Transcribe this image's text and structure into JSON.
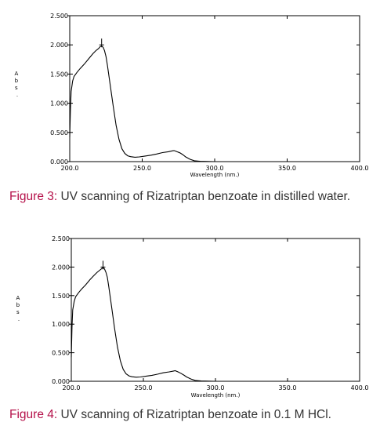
{
  "figures": [
    {
      "caption_label": "Figure 3:",
      "caption_text": " UV scanning of Rizatriptan benzoate in distilled water."
    },
    {
      "caption_label": "Figure 4:",
      "caption_text": " UV scanning of Rizatriptan benzoate in 0.1 M HCl."
    }
  ],
  "chart_data": [
    {
      "type": "line",
      "title": "",
      "xlabel": "Wavelength (nm.)",
      "ylabel": "Abs.",
      "xlim": [
        200,
        400
      ],
      "ylim": [
        0,
        2.5
      ],
      "x_ticks": [
        "200.0",
        "250.0",
        "300.0",
        "350.0",
        "400.0"
      ],
      "y_ticks": [
        "0.000",
        "0.500",
        "1.000",
        "1.500",
        "2.000",
        "2.500"
      ],
      "grid": false,
      "peak_marker": {
        "x": 222,
        "y": 2.0
      },
      "series": [
        {
          "x": [
            200,
            200.5,
            201,
            202,
            203,
            205,
            207,
            210,
            213,
            216,
            218,
            220,
            221,
            222,
            223,
            224,
            225,
            226,
            228,
            230,
            232,
            234,
            236,
            238,
            240,
            242,
            245,
            248,
            252,
            256,
            260,
            264,
            268,
            271,
            272,
            274,
            276,
            278,
            280,
            283,
            286,
            290,
            300,
            320,
            350,
            380,
            400
          ],
          "y": [
            0.42,
            0.9,
            1.2,
            1.38,
            1.46,
            1.53,
            1.59,
            1.67,
            1.76,
            1.85,
            1.9,
            1.94,
            1.97,
            1.98,
            1.96,
            1.9,
            1.8,
            1.65,
            1.3,
            0.95,
            0.62,
            0.38,
            0.22,
            0.14,
            0.1,
            0.085,
            0.075,
            0.08,
            0.095,
            0.11,
            0.13,
            0.155,
            0.17,
            0.185,
            0.19,
            0.17,
            0.15,
            0.12,
            0.08,
            0.04,
            0.015,
            0.005,
            0.0,
            0.0,
            0.0,
            0.0,
            0.0
          ]
        }
      ]
    },
    {
      "type": "line",
      "title": "",
      "xlabel": "Wavelength (nm.)",
      "ylabel": "Abs.",
      "xlim": [
        200,
        400
      ],
      "ylim": [
        0,
        2.5
      ],
      "x_ticks": [
        "200.0",
        "250.0",
        "300.0",
        "350.0",
        "400.0"
      ],
      "y_ticks": [
        "0.000",
        "0.500",
        "1.000",
        "1.500",
        "2.000",
        "2.500"
      ],
      "grid": false,
      "peak_marker": {
        "x": 222,
        "y": 2.0
      },
      "series": [
        {
          "x": [
            200,
            200.5,
            201,
            202,
            203,
            205,
            207,
            210,
            213,
            216,
            218,
            220,
            221,
            222,
            223,
            224,
            225,
            226,
            228,
            230,
            232,
            234,
            236,
            238,
            240,
            242,
            245,
            248,
            252,
            256,
            260,
            264,
            268,
            271,
            272,
            274,
            276,
            278,
            280,
            283,
            286,
            290,
            300,
            320,
            350,
            380,
            400
          ],
          "y": [
            0.42,
            0.95,
            1.25,
            1.4,
            1.48,
            1.55,
            1.61,
            1.69,
            1.78,
            1.86,
            1.91,
            1.95,
            1.97,
            1.99,
            1.97,
            1.91,
            1.82,
            1.66,
            1.3,
            0.93,
            0.6,
            0.36,
            0.21,
            0.13,
            0.095,
            0.08,
            0.072,
            0.076,
            0.09,
            0.105,
            0.125,
            0.15,
            0.165,
            0.18,
            0.185,
            0.165,
            0.14,
            0.11,
            0.075,
            0.04,
            0.015,
            0.005,
            0.0,
            0.0,
            0.0,
            0.0,
            0.0
          ]
        }
      ]
    }
  ]
}
